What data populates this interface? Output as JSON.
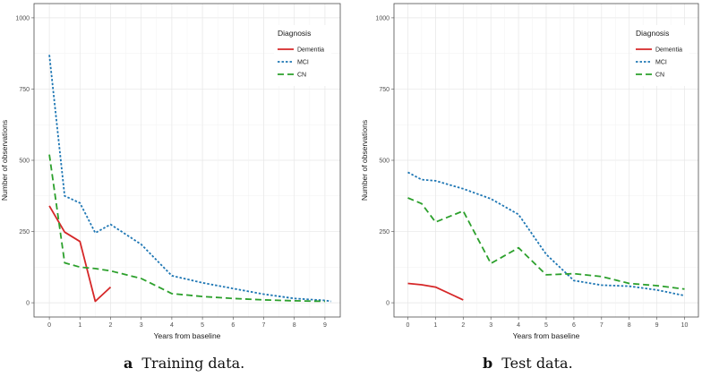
{
  "chart_data": [
    {
      "type": "line",
      "caption_letter": "a",
      "caption_text": "Training data.",
      "xlabel": "Years from baseline",
      "ylabel": "Number of observations",
      "xlim": [
        -0.5,
        9.5
      ],
      "ylim": [
        -50,
        1050
      ],
      "xticks": [
        "0",
        "1",
        "2",
        "3",
        "4",
        "5",
        "6",
        "7",
        "8",
        "9"
      ],
      "yticks": [
        "0",
        "250",
        "500",
        "750",
        "1000"
      ],
      "grid": true,
      "legend_title": "Diagnosis",
      "legend_position": "top-right",
      "series": [
        {
          "name": "Dementia",
          "color": "#d62728",
          "dash": "solid",
          "x": [
            0,
            0.5,
            1,
            1.5,
            2
          ],
          "y": [
            340,
            248,
            215,
            5,
            55
          ]
        },
        {
          "name": "MCI",
          "color": "#1f77b4",
          "dash": "dotted",
          "x": [
            0,
            0.5,
            1,
            1.5,
            2,
            3,
            4,
            5,
            6,
            7,
            8,
            9,
            9.2
          ],
          "y": [
            870,
            375,
            350,
            245,
            275,
            205,
            95,
            70,
            50,
            30,
            15,
            8,
            5
          ]
        },
        {
          "name": "CN",
          "color": "#2ca02c",
          "dash": "dashed",
          "x": [
            0,
            0.5,
            1,
            1.5,
            2,
            3,
            4,
            5,
            6,
            7,
            8,
            9
          ],
          "y": [
            520,
            140,
            125,
            120,
            112,
            85,
            32,
            22,
            15,
            10,
            7,
            5
          ]
        }
      ]
    },
    {
      "type": "line",
      "caption_letter": "b",
      "caption_text": "Test data.",
      "xlabel": "Years from baseline",
      "ylabel": "Number of observations",
      "xlim": [
        -0.5,
        10.5
      ],
      "ylim": [
        -50,
        1050
      ],
      "xticks": [
        "0",
        "1",
        "2",
        "3",
        "4",
        "5",
        "6",
        "7",
        "8",
        "9",
        "10"
      ],
      "yticks": [
        "0",
        "250",
        "500",
        "750",
        "1000"
      ],
      "grid": true,
      "legend_title": "Diagnosis",
      "legend_position": "top-right",
      "series": [
        {
          "name": "Dementia",
          "color": "#d62728",
          "dash": "solid",
          "x": [
            0,
            0.5,
            1,
            2
          ],
          "y": [
            68,
            63,
            55,
            10
          ]
        },
        {
          "name": "MCI",
          "color": "#1f77b4",
          "dash": "dotted",
          "x": [
            0,
            0.5,
            1,
            2,
            3,
            4,
            5,
            6,
            7,
            8,
            9,
            10
          ],
          "y": [
            458,
            432,
            428,
            400,
            365,
            310,
            170,
            78,
            62,
            58,
            45,
            25
          ]
        },
        {
          "name": "CN",
          "color": "#2ca02c",
          "dash": "dashed",
          "x": [
            0,
            0.5,
            1,
            2,
            3,
            4,
            5,
            6,
            7,
            8,
            9,
            10
          ],
          "y": [
            368,
            348,
            283,
            322,
            138,
            193,
            98,
            102,
            92,
            68,
            60,
            48
          ]
        }
      ]
    }
  ]
}
